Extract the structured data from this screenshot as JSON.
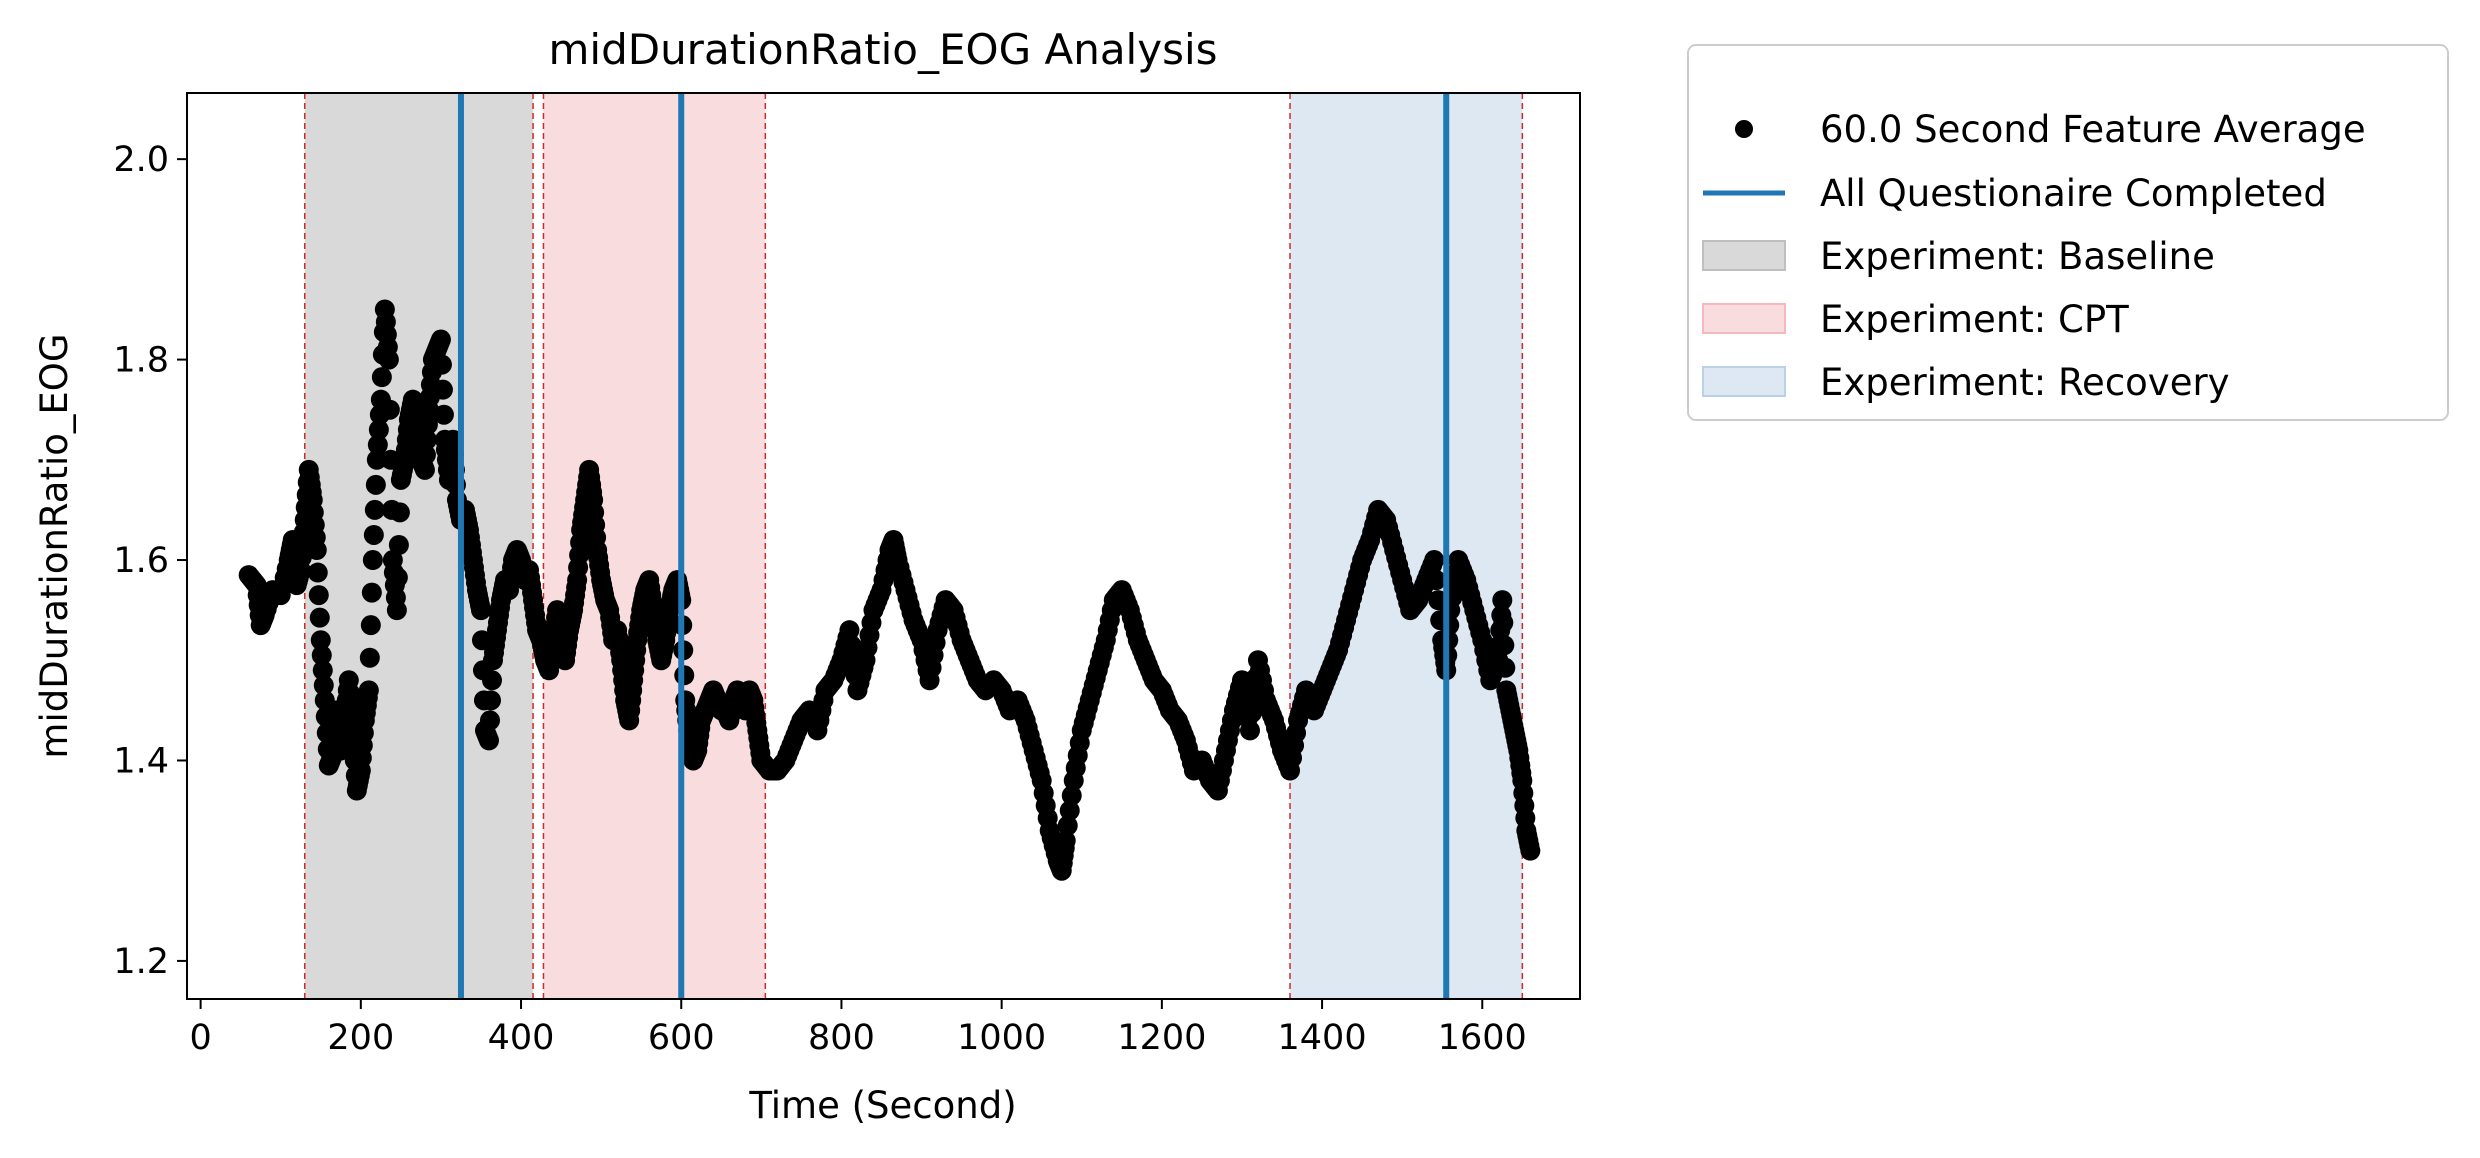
{
  "chart_data": {
    "type": "scatter",
    "title": "midDurationRatio_EOG Analysis",
    "xlabel": "Time (Second)",
    "ylabel": "midDurationRatio_EOG",
    "xlim": [
      -17,
      1722
    ],
    "ylim": [
      1.162,
      2.066
    ],
    "x_ticks": [
      0,
      200,
      400,
      600,
      800,
      1000,
      1200,
      1400,
      1600
    ],
    "y_ticks": [
      1.2,
      1.4,
      1.6,
      1.8,
      2.0
    ],
    "x_tick_labels": [
      "0",
      "200",
      "400",
      "600",
      "800",
      "1000",
      "1200",
      "1400",
      "1600"
    ],
    "y_tick_labels": [
      "1.2",
      "1.4",
      "1.6",
      "1.8",
      "2.0"
    ],
    "grid": false,
    "legend_position": "outside-top-right",
    "legend": [
      {
        "label": "60.0 Second Feature Average",
        "kind": "marker",
        "color": "#000000"
      },
      {
        "label": "All Questionaire Completed",
        "kind": "line",
        "color": "#1f77b4"
      },
      {
        "label": "Experiment: Baseline",
        "kind": "patch",
        "color": "#d9d9d9"
      },
      {
        "label": "Experiment: CPT",
        "kind": "patch",
        "color": "#f8dcde"
      },
      {
        "label": "Experiment: Recovery",
        "kind": "patch",
        "color": "#dde8f2"
      }
    ],
    "regions": [
      {
        "name": "Experiment: Baseline",
        "start": 130,
        "end": 415,
        "color": "#d9d9d9"
      },
      {
        "name": "Experiment: CPT",
        "start": 428,
        "end": 705,
        "color": "#f8dcde"
      },
      {
        "name": "Experiment: Recovery",
        "start": 1360,
        "end": 1650,
        "color": "#dde8f2"
      }
    ],
    "region_boundary_color": "#d62728",
    "questionnaire_lines": {
      "name": "All Questionaire Completed",
      "x": [
        325,
        600,
        1555
      ],
      "color": "#1f77b4"
    },
    "series": [
      {
        "name": "60.0 Second Feature Average",
        "color": "#000000",
        "points": [
          [
            60,
            1.585
          ],
          [
            70,
            1.575
          ],
          [
            75,
            1.535
          ],
          [
            80,
            1.545
          ],
          [
            90,
            1.57
          ],
          [
            100,
            1.565
          ],
          [
            110,
            1.6
          ],
          [
            115,
            1.62
          ],
          [
            120,
            1.575
          ],
          [
            125,
            1.59
          ],
          [
            130,
            1.64
          ],
          [
            135,
            1.69
          ],
          [
            140,
            1.66
          ],
          [
            145,
            1.61
          ],
          [
            150,
            1.52
          ],
          [
            155,
            1.46
          ],
          [
            160,
            1.395
          ],
          [
            165,
            1.405
          ],
          [
            170,
            1.45
          ],
          [
            175,
            1.41
          ],
          [
            180,
            1.44
          ],
          [
            185,
            1.48
          ],
          [
            190,
            1.43
          ],
          [
            195,
            1.37
          ],
          [
            200,
            1.39
          ],
          [
            205,
            1.44
          ],
          [
            210,
            1.47
          ],
          [
            215,
            1.6
          ],
          [
            220,
            1.7
          ],
          [
            225,
            1.76
          ],
          [
            230,
            1.85
          ],
          [
            235,
            1.8
          ],
          [
            240,
            1.6
          ],
          [
            245,
            1.55
          ],
          [
            250,
            1.68
          ],
          [
            255,
            1.7
          ],
          [
            260,
            1.74
          ],
          [
            265,
            1.76
          ],
          [
            270,
            1.72
          ],
          [
            275,
            1.7
          ],
          [
            280,
            1.69
          ],
          [
            285,
            1.75
          ],
          [
            290,
            1.8
          ],
          [
            295,
            1.81
          ],
          [
            300,
            1.82
          ],
          [
            305,
            1.72
          ],
          [
            310,
            1.68
          ],
          [
            315,
            1.72
          ],
          [
            320,
            1.66
          ],
          [
            325,
            1.64
          ],
          [
            330,
            1.65
          ],
          [
            335,
            1.63
          ],
          [
            340,
            1.6
          ],
          [
            345,
            1.57
          ],
          [
            350,
            1.55
          ],
          [
            355,
            1.43
          ],
          [
            360,
            1.42
          ],
          [
            365,
            1.5
          ],
          [
            370,
            1.53
          ],
          [
            375,
            1.56
          ],
          [
            380,
            1.58
          ],
          [
            385,
            1.57
          ],
          [
            390,
            1.6
          ],
          [
            395,
            1.61
          ],
          [
            400,
            1.6
          ],
          [
            405,
            1.58
          ],
          [
            410,
            1.59
          ],
          [
            415,
            1.56
          ],
          [
            420,
            1.53
          ],
          [
            425,
            1.52
          ],
          [
            430,
            1.5
          ],
          [
            435,
            1.49
          ],
          [
            440,
            1.52
          ],
          [
            445,
            1.55
          ],
          [
            450,
            1.52
          ],
          [
            455,
            1.5
          ],
          [
            460,
            1.53
          ],
          [
            465,
            1.55
          ],
          [
            470,
            1.58
          ],
          [
            475,
            1.63
          ],
          [
            480,
            1.66
          ],
          [
            485,
            1.69
          ],
          [
            490,
            1.66
          ],
          [
            495,
            1.61
          ],
          [
            500,
            1.58
          ],
          [
            505,
            1.56
          ],
          [
            510,
            1.55
          ],
          [
            515,
            1.52
          ],
          [
            520,
            1.53
          ],
          [
            525,
            1.5
          ],
          [
            530,
            1.46
          ],
          [
            535,
            1.44
          ],
          [
            540,
            1.48
          ],
          [
            545,
            1.52
          ],
          [
            550,
            1.55
          ],
          [
            555,
            1.57
          ],
          [
            560,
            1.58
          ],
          [
            565,
            1.55
          ],
          [
            570,
            1.52
          ],
          [
            575,
            1.5
          ],
          [
            580,
            1.52
          ],
          [
            585,
            1.55
          ],
          [
            590,
            1.57
          ],
          [
            595,
            1.58
          ],
          [
            600,
            1.56
          ],
          [
            605,
            1.46
          ],
          [
            610,
            1.42
          ],
          [
            615,
            1.4
          ],
          [
            620,
            1.41
          ],
          [
            625,
            1.44
          ],
          [
            630,
            1.45
          ],
          [
            635,
            1.46
          ],
          [
            640,
            1.47
          ],
          [
            645,
            1.46
          ],
          [
            650,
            1.45
          ],
          [
            655,
            1.45
          ],
          [
            660,
            1.44
          ],
          [
            665,
            1.46
          ],
          [
            670,
            1.47
          ],
          [
            675,
            1.46
          ],
          [
            680,
            1.45
          ],
          [
            685,
            1.47
          ],
          [
            690,
            1.46
          ],
          [
            695,
            1.43
          ],
          [
            700,
            1.4
          ],
          [
            710,
            1.39
          ],
          [
            720,
            1.39
          ],
          [
            730,
            1.4
          ],
          [
            740,
            1.42
          ],
          [
            750,
            1.44
          ],
          [
            760,
            1.45
          ],
          [
            770,
            1.43
          ],
          [
            780,
            1.47
          ],
          [
            790,
            1.48
          ],
          [
            800,
            1.5
          ],
          [
            810,
            1.53
          ],
          [
            820,
            1.47
          ],
          [
            830,
            1.5
          ],
          [
            840,
            1.55
          ],
          [
            850,
            1.57
          ],
          [
            860,
            1.61
          ],
          [
            865,
            1.62
          ],
          [
            870,
            1.6
          ],
          [
            880,
            1.57
          ],
          [
            890,
            1.54
          ],
          [
            900,
            1.52
          ],
          [
            910,
            1.48
          ],
          [
            920,
            1.53
          ],
          [
            930,
            1.56
          ],
          [
            940,
            1.55
          ],
          [
            950,
            1.52
          ],
          [
            960,
            1.5
          ],
          [
            970,
            1.48
          ],
          [
            980,
            1.47
          ],
          [
            990,
            1.48
          ],
          [
            1000,
            1.47
          ],
          [
            1010,
            1.45
          ],
          [
            1020,
            1.46
          ],
          [
            1030,
            1.44
          ],
          [
            1040,
            1.41
          ],
          [
            1050,
            1.38
          ],
          [
            1060,
            1.33
          ],
          [
            1070,
            1.3
          ],
          [
            1075,
            1.29
          ],
          [
            1080,
            1.32
          ],
          [
            1090,
            1.38
          ],
          [
            1100,
            1.43
          ],
          [
            1110,
            1.46
          ],
          [
            1120,
            1.49
          ],
          [
            1130,
            1.52
          ],
          [
            1140,
            1.56
          ],
          [
            1150,
            1.57
          ],
          [
            1160,
            1.55
          ],
          [
            1170,
            1.52
          ],
          [
            1180,
            1.5
          ],
          [
            1190,
            1.48
          ],
          [
            1200,
            1.47
          ],
          [
            1210,
            1.45
          ],
          [
            1220,
            1.44
          ],
          [
            1230,
            1.42
          ],
          [
            1240,
            1.39
          ],
          [
            1250,
            1.4
          ],
          [
            1260,
            1.38
          ],
          [
            1270,
            1.37
          ],
          [
            1280,
            1.41
          ],
          [
            1290,
            1.45
          ],
          [
            1300,
            1.48
          ],
          [
            1310,
            1.43
          ],
          [
            1320,
            1.5
          ],
          [
            1330,
            1.46
          ],
          [
            1340,
            1.44
          ],
          [
            1350,
            1.41
          ],
          [
            1360,
            1.39
          ],
          [
            1370,
            1.44
          ],
          [
            1380,
            1.47
          ],
          [
            1390,
            1.45
          ],
          [
            1400,
            1.47
          ],
          [
            1410,
            1.49
          ],
          [
            1420,
            1.51
          ],
          [
            1430,
            1.54
          ],
          [
            1440,
            1.57
          ],
          [
            1450,
            1.6
          ],
          [
            1460,
            1.62
          ],
          [
            1470,
            1.65
          ],
          [
            1480,
            1.64
          ],
          [
            1490,
            1.61
          ],
          [
            1500,
            1.58
          ],
          [
            1510,
            1.55
          ],
          [
            1520,
            1.56
          ],
          [
            1530,
            1.58
          ],
          [
            1540,
            1.6
          ],
          [
            1550,
            1.52
          ],
          [
            1555,
            1.49
          ],
          [
            1560,
            1.55
          ],
          [
            1570,
            1.6
          ],
          [
            1580,
            1.58
          ],
          [
            1590,
            1.55
          ],
          [
            1600,
            1.52
          ],
          [
            1610,
            1.48
          ],
          [
            1620,
            1.5
          ],
          [
            1625,
            1.56
          ],
          [
            1630,
            1.47
          ],
          [
            1635,
            1.45
          ],
          [
            1640,
            1.43
          ],
          [
            1645,
            1.41
          ],
          [
            1650,
            1.38
          ],
          [
            1655,
            1.33
          ],
          [
            1660,
            1.31
          ]
        ]
      }
    ]
  }
}
